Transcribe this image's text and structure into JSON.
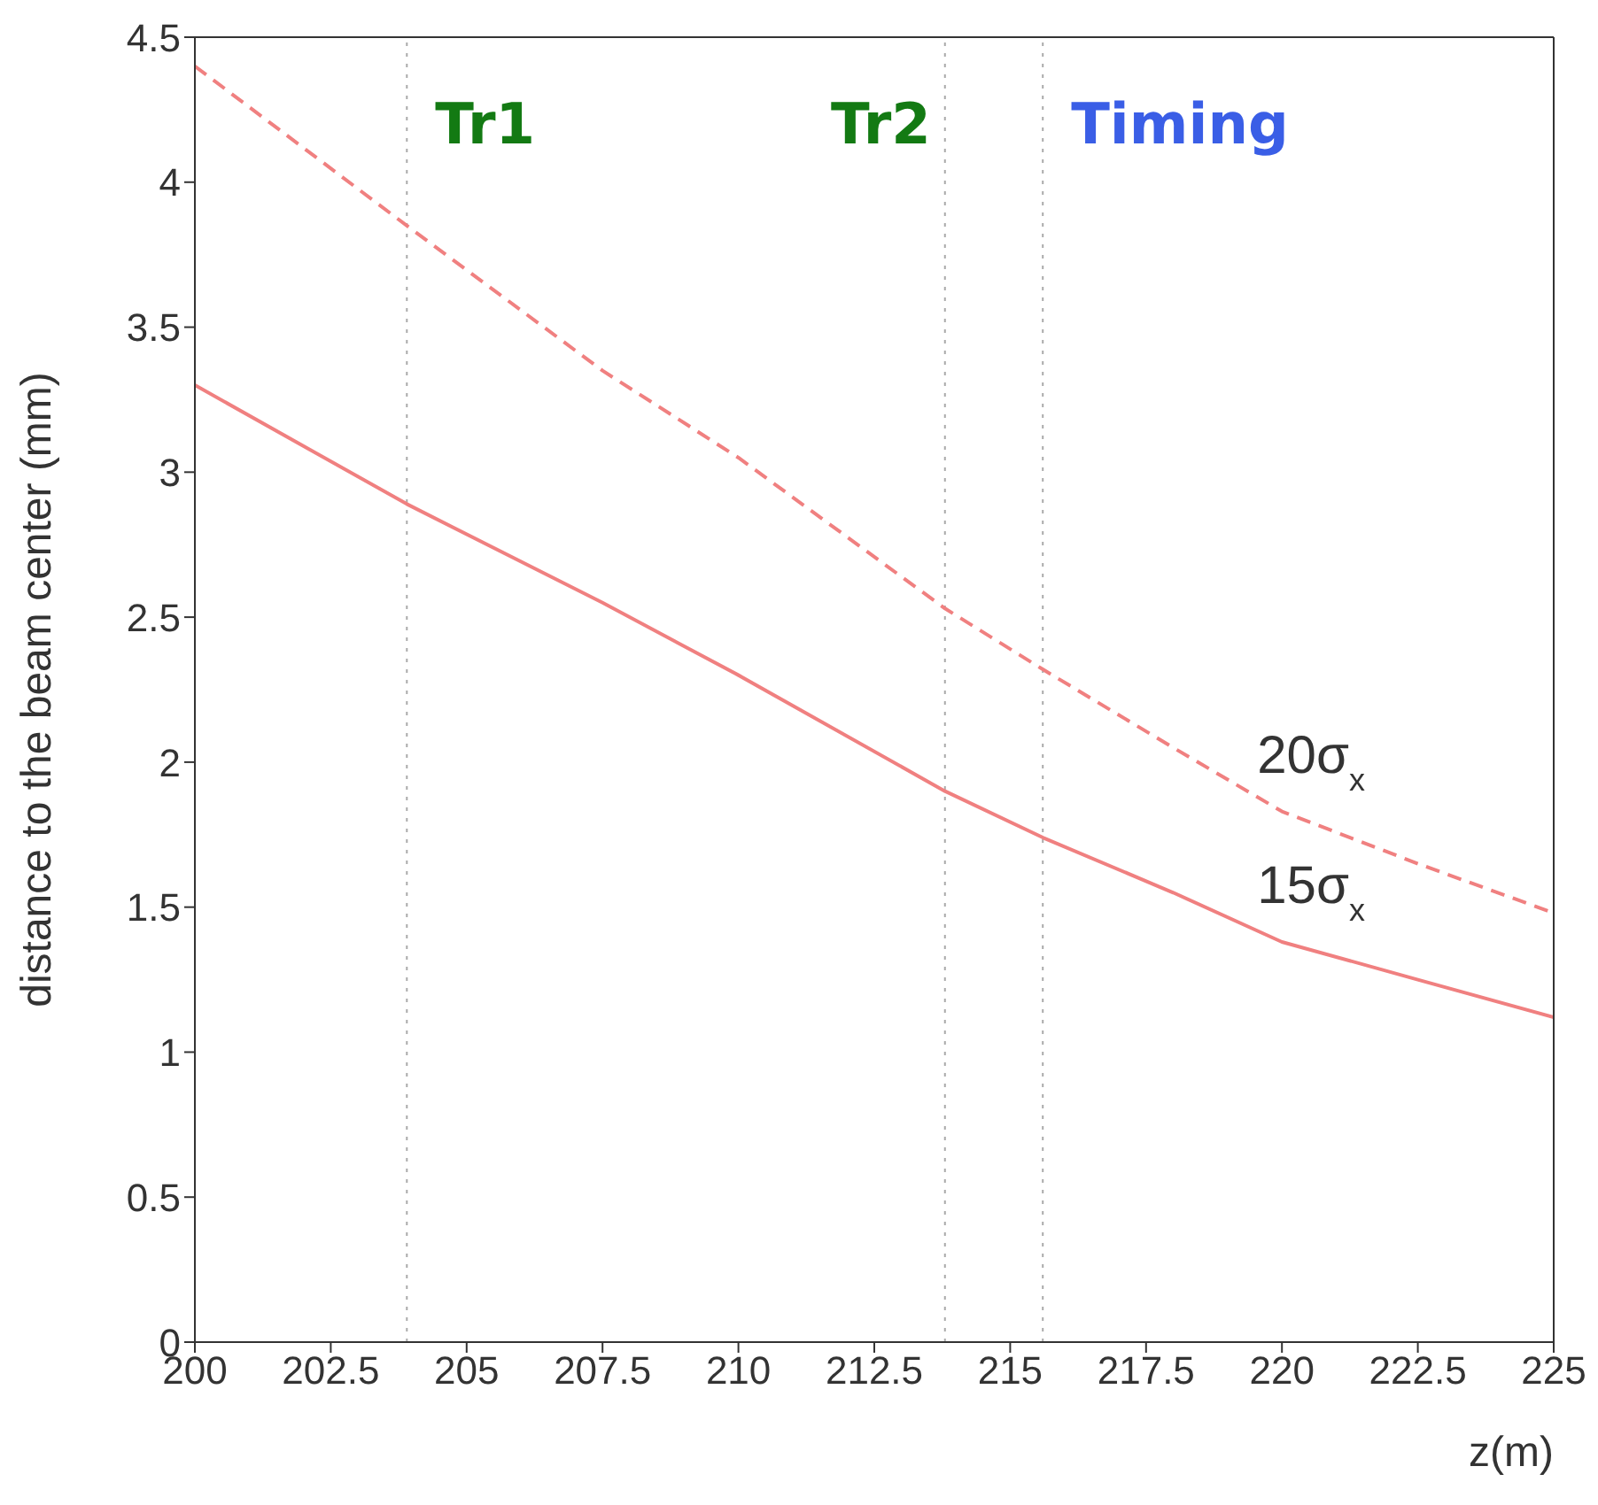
{
  "chart_data": {
    "type": "line",
    "xlabel": "z(m)",
    "ylabel": "distance to the beam center (mm)",
    "x": [
      200,
      203.9,
      207.5,
      210,
      213.8,
      215.6,
      218,
      220,
      222.5,
      225
    ],
    "series": [
      {
        "name": "20σ$_{x}$",
        "color": "#f08080",
        "line_style": "dashed",
        "values": [
          4.4,
          3.85,
          3.35,
          3.05,
          2.53,
          2.32,
          2.05,
          1.83,
          1.65,
          1.48
        ]
      },
      {
        "name": "15σ$_{x}$",
        "color": "#f08080",
        "line_style": "solid",
        "values": [
          3.3,
          2.89,
          2.55,
          2.3,
          1.9,
          1.74,
          1.55,
          1.38,
          1.25,
          1.12
        ]
      }
    ],
    "xlim": [
      200,
      225
    ],
    "xticks": [
      200,
      202.5,
      205,
      207.5,
      210,
      212.5,
      215,
      217.5,
      220,
      222.5,
      225
    ],
    "ylim": [
      0,
      4.5
    ],
    "yticks": [
      0,
      0.5,
      1,
      1.5,
      2,
      2.5,
      3,
      3.5,
      4,
      4.5
    ],
    "ref_lines": [
      {
        "axis": "x",
        "value": 203.9,
        "label": "Tr1",
        "color": "#aaaaaa",
        "line_style": "dotted"
      },
      {
        "axis": "x",
        "value": 213.8,
        "label": "Tr2",
        "color": "#aaaaaa",
        "line_style": "dotted"
      },
      {
        "axis": "x",
        "value": 215.6,
        "label": "Timing",
        "color": "#aaaaaa",
        "line_style": "dotted"
      }
    ],
    "marker": "none"
  }
}
